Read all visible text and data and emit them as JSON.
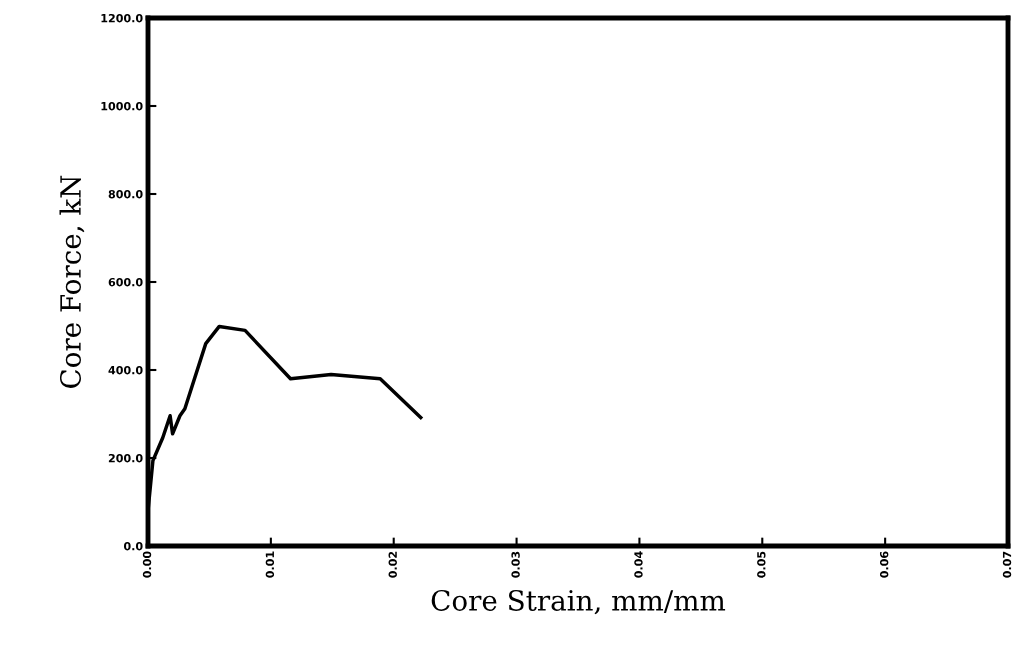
{
  "chart_data": {
    "type": "line",
    "xlabel": "Core Strain, mm/mm",
    "ylabel": "Core Force, kN",
    "series": [
      {
        "color": "#000000",
        "x": [
          0,
          0.0004,
          0.0012,
          0.0018,
          0.002,
          0.0026,
          0.003,
          0.0047,
          0.0058,
          0.0079,
          0.0116,
          0.0149,
          0.0189,
          0.0222
        ],
        "values": [
          80,
          194,
          246,
          296,
          255,
          296,
          312,
          460,
          499,
          490,
          380,
          390,
          380,
          292
        ]
      }
    ],
    "xlim": [
      0,
      0.07
    ],
    "xticks": [
      {
        "value": 0,
        "label": "0.00"
      },
      {
        "value": 0.01,
        "label": "0.01"
      },
      {
        "value": 0.02,
        "label": "0.02"
      },
      {
        "value": 0.03,
        "label": "0.03"
      },
      {
        "value": 0.04,
        "label": "0.04"
      },
      {
        "value": 0.05,
        "label": "0.05"
      },
      {
        "value": 0.06,
        "label": "0.06"
      },
      {
        "value": 0.07,
        "label": "0.07"
      }
    ],
    "ylim": [
      0,
      1200
    ],
    "yticks": [
      {
        "value": 0,
        "label": "0.0"
      },
      {
        "value": 200,
        "label": "200.0"
      },
      {
        "value": 400,
        "label": "400.0"
      },
      {
        "value": 600,
        "label": "600.0"
      },
      {
        "value": 800,
        "label": "800.0"
      },
      {
        "value": 1000,
        "label": "1000.0"
      },
      {
        "value": 1200,
        "label": "1200.0"
      }
    ],
    "grid": false,
    "legend": false,
    "marker": "none",
    "line_style": "solid"
  }
}
